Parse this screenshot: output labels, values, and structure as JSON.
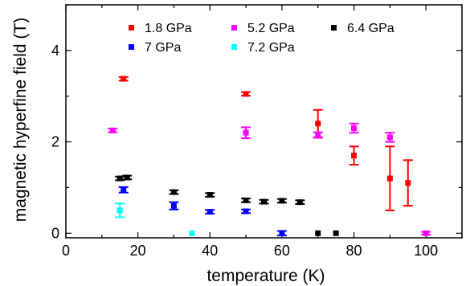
{
  "chart_data": {
    "type": "scatter",
    "xlabel": "temperature (K)",
    "ylabel": "magnetic hyperfine field (T)",
    "xlim": [
      0,
      110
    ],
    "ylim": [
      -0.1,
      5
    ],
    "xticks": [
      0,
      20,
      40,
      60,
      80,
      100
    ],
    "yticks": [
      0,
      2,
      4
    ],
    "x_minor_step": 10,
    "y_minor_step": 1,
    "legend_placement": "top",
    "series": [
      {
        "name": "1.8 GPa",
        "color": "#ff0000",
        "points": [
          {
            "x": 16,
            "y": 3.38,
            "err": 0.04
          },
          {
            "x": 50,
            "y": 3.05,
            "err": 0.04
          },
          {
            "x": 70,
            "y": 2.4,
            "err": 0.3
          },
          {
            "x": 80,
            "y": 1.7,
            "err": 0.2
          },
          {
            "x": 90,
            "y": 1.2,
            "err": 0.7
          },
          {
            "x": 95,
            "y": 1.1,
            "err": 0.5
          }
        ]
      },
      {
        "name": "5.2 GPa",
        "color": "#ff00ff",
        "points": [
          {
            "x": 13,
            "y": 2.25,
            "err": 0.04
          },
          {
            "x": 50,
            "y": 2.2,
            "err": 0.12
          },
          {
            "x": 70,
            "y": 2.15,
            "err": 0.06
          },
          {
            "x": 80,
            "y": 2.3,
            "err": 0.1
          },
          {
            "x": 90,
            "y": 2.1,
            "err": 0.1
          },
          {
            "x": 100,
            "y": 0.0,
            "err": 0.03
          }
        ]
      },
      {
        "name": "6.4 GPa",
        "color": "#000000",
        "points": [
          {
            "x": 15,
            "y": 1.2,
            "err": 0.04
          },
          {
            "x": 17,
            "y": 1.22,
            "err": 0.04
          },
          {
            "x": 30,
            "y": 0.9,
            "err": 0.04
          },
          {
            "x": 40,
            "y": 0.84,
            "err": 0.04
          },
          {
            "x": 50,
            "y": 0.72,
            "err": 0.04
          },
          {
            "x": 55,
            "y": 0.69,
            "err": 0.04
          },
          {
            "x": 60,
            "y": 0.71,
            "err": 0.04
          },
          {
            "x": 65,
            "y": 0.68,
            "err": 0.04
          },
          {
            "x": 70,
            "y": 0.0,
            "err": 0.0
          },
          {
            "x": 75,
            "y": 0.0,
            "err": 0.0
          }
        ]
      },
      {
        "name": "7 GPa",
        "color": "#0000ff",
        "points": [
          {
            "x": 16,
            "y": 0.95,
            "err": 0.06
          },
          {
            "x": 30,
            "y": 0.6,
            "err": 0.08
          },
          {
            "x": 40,
            "y": 0.47,
            "err": 0.04
          },
          {
            "x": 50,
            "y": 0.48,
            "err": 0.04
          },
          {
            "x": 60,
            "y": 0.0,
            "err": 0.05
          }
        ]
      },
      {
        "name": "7.2 GPa",
        "color": "#00ffff",
        "points": [
          {
            "x": 15,
            "y": 0.5,
            "err": 0.15
          },
          {
            "x": 35,
            "y": 0.0,
            "err": 0.0
          }
        ]
      }
    ]
  }
}
